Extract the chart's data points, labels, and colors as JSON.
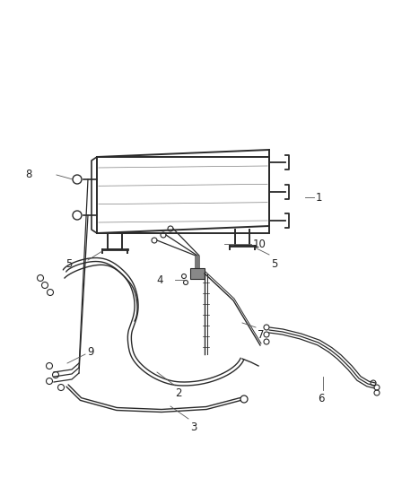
{
  "background_color": "#ffffff",
  "fig_width": 4.38,
  "fig_height": 5.33,
  "dpi": 100,
  "line_color": "#2a2a2a",
  "label_color": "#222222",
  "label_fontsize": 8.5,
  "callout_color": "#555555"
}
